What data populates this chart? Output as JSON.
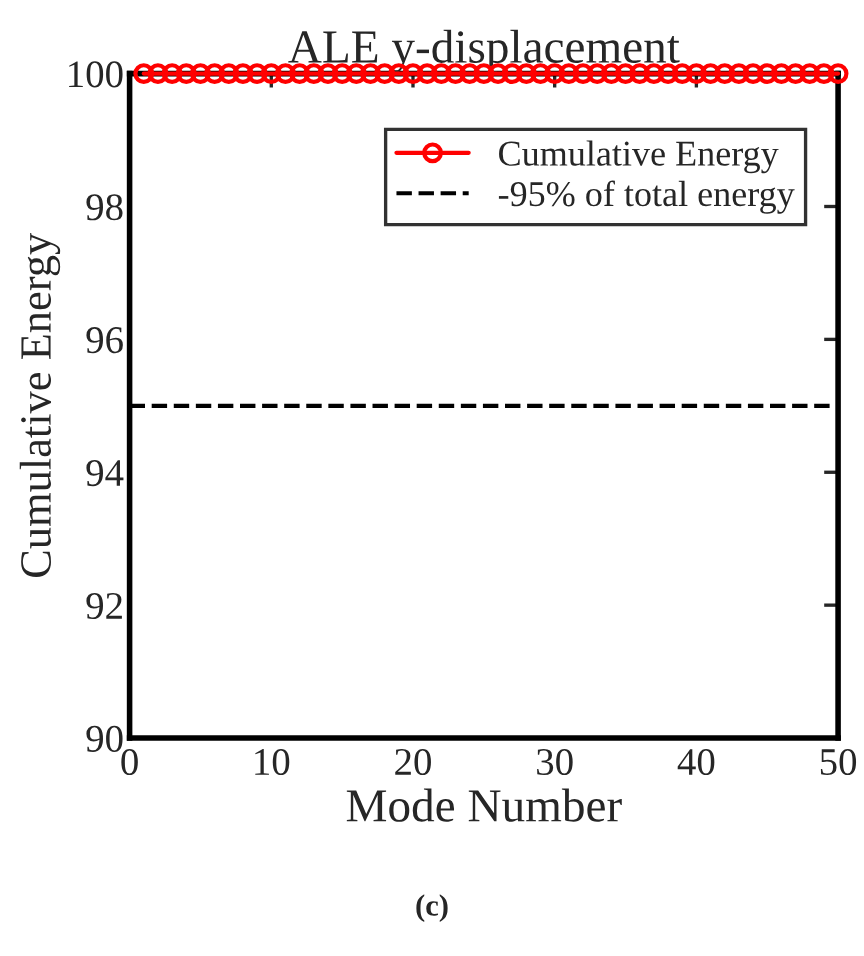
{
  "chart_data": {
    "type": "line",
    "title": "ALE y-displacement",
    "xlabel": "Mode Number",
    "ylabel": "Cumulative Energy",
    "x": [
      1,
      2,
      3,
      4,
      5,
      6,
      7,
      8,
      9,
      10,
      11,
      12,
      13,
      14,
      15,
      16,
      17,
      18,
      19,
      20,
      21,
      22,
      23,
      24,
      25,
      26,
      27,
      28,
      29,
      30,
      31,
      32,
      33,
      34,
      35,
      36,
      37,
      38,
      39,
      40,
      41,
      42,
      43,
      44,
      45,
      46,
      47,
      48,
      49,
      50
    ],
    "series": [
      {
        "name": "Cumulative Energy",
        "color": "#ff0000",
        "values": [
          100,
          100,
          100,
          100,
          100,
          100,
          100,
          100,
          100,
          100,
          100,
          100,
          100,
          100,
          100,
          100,
          100,
          100,
          100,
          100,
          100,
          100,
          100,
          100,
          100,
          100,
          100,
          100,
          100,
          100,
          100,
          100,
          100,
          100,
          100,
          100,
          100,
          100,
          100,
          100,
          100,
          100,
          100,
          100,
          100,
          100,
          100,
          100,
          100,
          100
        ]
      }
    ],
    "marker": "circle",
    "line_style": "solid",
    "xlim": [
      0,
      50
    ],
    "xticks": [
      0,
      10,
      20,
      30,
      40,
      50
    ],
    "ylim": [
      90,
      100
    ],
    "yticks": [
      90,
      92,
      94,
      96,
      98,
      100
    ],
    "ref_lines": [
      {
        "axis": "y",
        "value": 95,
        "label": "-95% of total energy",
        "color": "#000000",
        "line_style": "dashed"
      }
    ],
    "legend": "top right",
    "grid": false,
    "annotations": [
      "(c)"
    ]
  }
}
